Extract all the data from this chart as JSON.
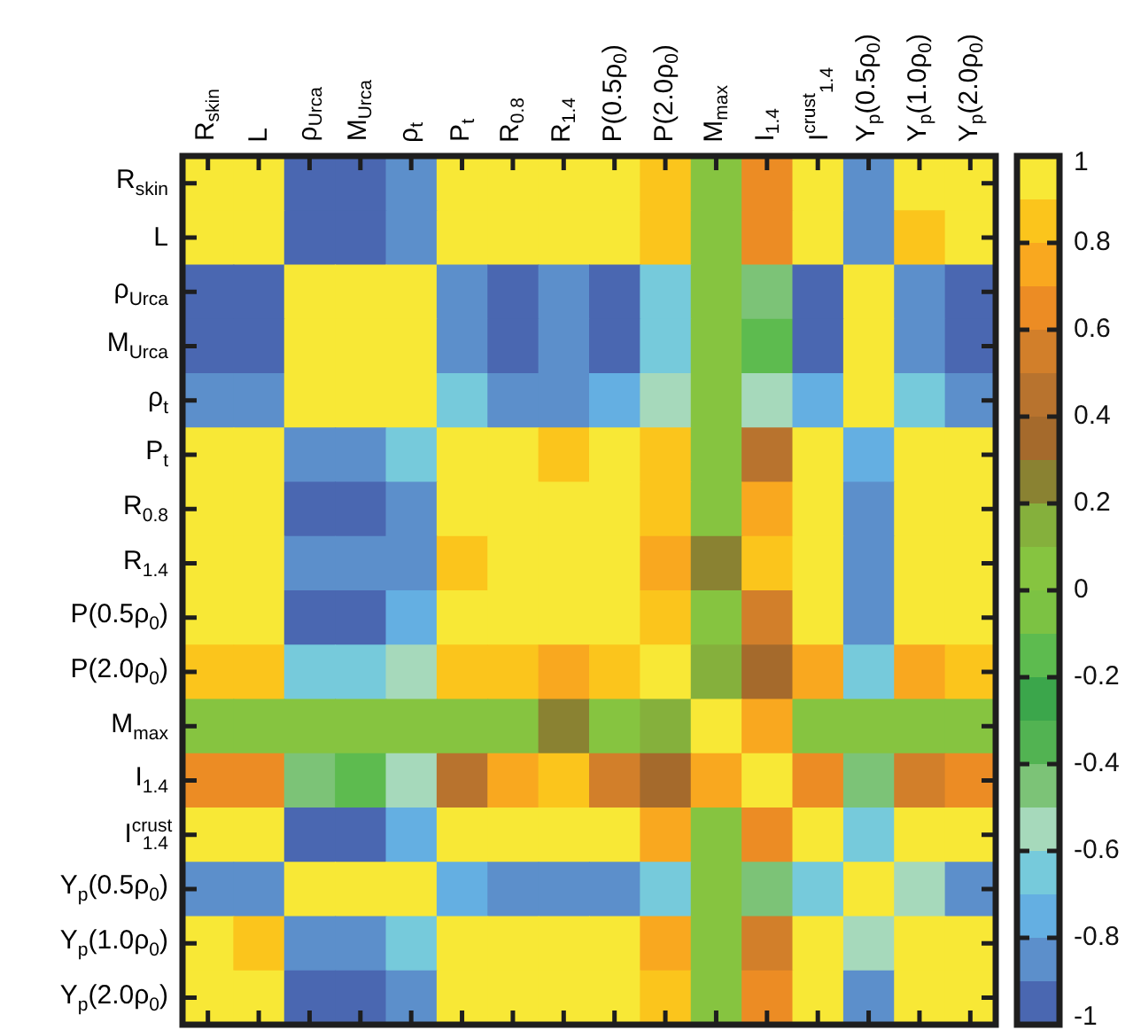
{
  "chart_data": {
    "type": "heatmap",
    "categories": [
      "R$_{skin}$",
      "L",
      "ρ$_{Urca}$",
      "M$_{Urca}$",
      "ρ$_{t}$",
      "P$_{t}$",
      "R$_{0.8}$",
      "R$_{1.4}$",
      "P(0.5ρ$_{0}$)",
      "P(2.0ρ$_{0}$)",
      "M$_{max}$",
      "I$_{1.4}$",
      "I$^{crust}$$_{1.4}$",
      "Y$_{p}$(0.5ρ$_{0}$)",
      "Y$_{p}$(1.0ρ$_{0}$)",
      "Y$_{p}$(2.0ρ$_{0}$)"
    ],
    "y_categories": [
      "R$_{skin}$",
      "L",
      "ρ$_{Urca}$",
      "M$_{Urca}$",
      "ρ$_{t}$",
      "P$_{t}$",
      "R$_{0.8}$",
      "R$_{1.4}$",
      "P(0.5ρ$_{0}$)",
      "P(2.0ρ$_{0}$)",
      "M$_{max}$",
      "I$_{1.4}$",
      "I$^{crust}$$_{1.4}$",
      "Y$_{p}$(0.5ρ$_{0}$)",
      "Y$_{p}$(1.0ρ$_{0}$)",
      "Y$_{p}$(2.0ρ$_{0}$)"
    ],
    "cells": [
      [
        1,
        0.95,
        -0.9,
        -0.9,
        -0.8,
        0.95,
        0.95,
        0.95,
        0.95,
        0.8,
        0.05,
        0.6,
        0.95,
        -0.85,
        0.9,
        0.95
      ],
      [
        0.95,
        1,
        -0.9,
        -0.9,
        -0.8,
        0.95,
        0.95,
        0.95,
        0.95,
        0.85,
        0.05,
        0.6,
        0.95,
        -0.85,
        0.85,
        0.95
      ],
      [
        -0.9,
        -0.9,
        1,
        0.95,
        0.95,
        -0.8,
        -0.9,
        -0.85,
        -0.9,
        -0.7,
        0.05,
        -0.45,
        -0.9,
        0.9,
        -0.85,
        -0.9
      ],
      [
        -0.9,
        -0.9,
        0.95,
        1,
        0.9,
        -0.8,
        -0.9,
        -0.8,
        -0.9,
        -0.7,
        0.05,
        -0.15,
        -0.9,
        0.9,
        -0.85,
        -0.9
      ],
      [
        -0.8,
        -0.8,
        0.95,
        0.9,
        1,
        -0.65,
        -0.85,
        -0.85,
        -0.75,
        -0.55,
        0.05,
        -0.55,
        -0.75,
        0.95,
        -0.65,
        -0.8
      ],
      [
        0.95,
        0.95,
        -0.8,
        -0.8,
        -0.65,
        1,
        0.95,
        0.85,
        0.95,
        0.85,
        0.05,
        0.45,
        0.95,
        -0.75,
        0.9,
        0.95
      ],
      [
        0.95,
        0.95,
        -0.9,
        -0.9,
        -0.85,
        0.95,
        1,
        0.95,
        0.95,
        0.8,
        0.05,
        0.7,
        0.95,
        -0.85,
        0.95,
        0.95
      ],
      [
        0.95,
        0.95,
        -0.85,
        -0.8,
        -0.85,
        0.85,
        0.95,
        1,
        0.95,
        0.75,
        0.25,
        0.8,
        0.95,
        -0.8,
        0.9,
        0.95
      ],
      [
        0.95,
        0.95,
        -0.9,
        -0.9,
        -0.75,
        0.95,
        0.95,
        0.95,
        1,
        0.85,
        0.05,
        0.55,
        0.95,
        -0.85,
        0.9,
        0.95
      ],
      [
        0.8,
        0.85,
        -0.7,
        -0.7,
        -0.55,
        0.85,
        0.8,
        0.75,
        0.85,
        1,
        0.15,
        0.35,
        0.75,
        -0.65,
        0.75,
        0.85
      ],
      [
        0.05,
        0.05,
        0.05,
        0.05,
        0.05,
        0.05,
        0.05,
        0.25,
        0.05,
        0.15,
        1,
        0.75,
        0.05,
        0.05,
        0.05,
        0.05
      ],
      [
        0.6,
        0.6,
        -0.45,
        -0.15,
        -0.55,
        0.45,
        0.7,
        0.8,
        0.55,
        0.35,
        0.75,
        1,
        0.65,
        -0.45,
        0.55,
        0.65
      ],
      [
        0.95,
        0.95,
        -0.9,
        -0.9,
        -0.75,
        0.95,
        0.95,
        0.95,
        0.95,
        0.75,
        0.05,
        0.65,
        1,
        -0.7,
        0.95,
        0.95
      ],
      [
        -0.85,
        -0.85,
        0.9,
        0.9,
        0.95,
        -0.75,
        -0.85,
        -0.8,
        -0.85,
        -0.65,
        0.05,
        -0.45,
        -0.7,
        1,
        -0.55,
        -0.8
      ],
      [
        0.9,
        0.85,
        -0.85,
        -0.85,
        -0.65,
        0.9,
        0.95,
        0.9,
        0.9,
        0.75,
        0.05,
        0.55,
        0.95,
        -0.55,
        1,
        0.95
      ],
      [
        0.95,
        0.95,
        -0.9,
        -0.9,
        -0.8,
        0.95,
        0.95,
        0.95,
        0.95,
        0.85,
        0.05,
        0.65,
        0.95,
        -0.8,
        0.95,
        1
      ]
    ],
    "clim": [
      -1,
      1
    ],
    "cticks": [
      1,
      0.8,
      0.6,
      0.4,
      0.2,
      0,
      -0.2,
      -0.4,
      -0.6,
      -0.8,
      -1
    ]
  }
}
